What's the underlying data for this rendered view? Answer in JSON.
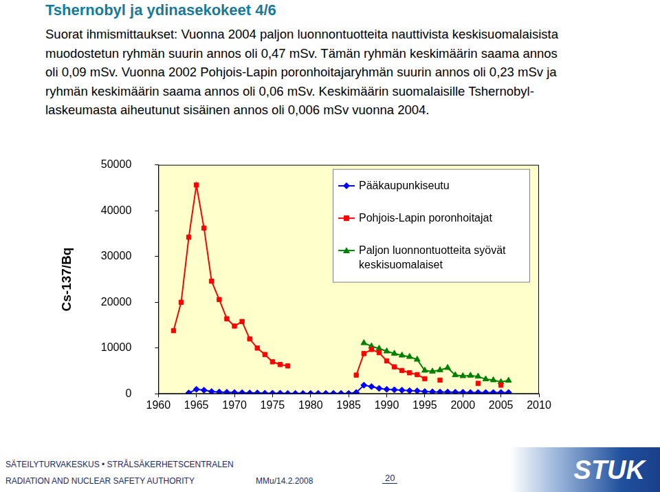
{
  "header": {
    "title": "Tshernobyl ja ydinasekokeet 4/6"
  },
  "text": [
    "Suorat ihmismittaukset: Vuonna 2004 paljon luonnontuotteita nauttivista keskisuomalaisista",
    "muodostetun ryhmän suurin annos oli 0,47 mSv. Tämän ryhmän keskimäärin saama annos",
    "oli 0,09 mSv. Vuonna 2002 Pohjois-Lapin poronhoitajaryhmän suurin annos oli 0,23 mSv ja",
    "ryhmän keskimäärin saama annos oli 0,06 mSv. Keskimäärin suomalaisille Tshernobyl-",
    "laskeumasta aiheutunut sisäinen annos oli 0,006 mSv vuonna 2004."
  ],
  "chart_data": {
    "type": "line",
    "ylabel": "Cs-137/Bq",
    "x": [
      1962,
      1963,
      1964,
      1965,
      1966,
      1967,
      1968,
      1969,
      1970,
      1971,
      1972,
      1973,
      1974,
      1975,
      1976,
      1977,
      1978,
      1979,
      1980,
      1981,
      1982,
      1983,
      1984,
      1985,
      1986,
      1987,
      1988,
      1989,
      1990,
      1991,
      1992,
      1993,
      1994,
      1995,
      1996,
      1997,
      1998,
      1999,
      2000,
      2001,
      2002,
      2003,
      2004,
      2005,
      2006,
      2007
    ],
    "series": [
      {
        "name": "Pääkaupunkiseutu",
        "color": "#0000ff",
        "marker": "diamond",
        "values": [
          null,
          null,
          200,
          1000,
          800,
          500,
          400,
          350,
          300,
          250,
          200,
          200,
          150,
          150,
          150,
          100,
          100,
          100,
          100,
          100,
          100,
          100,
          100,
          100,
          300,
          1900,
          1600,
          1200,
          1000,
          900,
          800,
          700,
          650,
          500,
          450,
          400,
          400,
          350,
          350,
          300,
          300,
          300,
          300,
          300,
          300,
          null
        ]
      },
      {
        "name": "Pohjois-Lapin poronhoitajat",
        "color": "#ff0000",
        "marker": "square",
        "values": [
          13800,
          20000,
          34200,
          45600,
          36200,
          24600,
          20600,
          16400,
          14800,
          15800,
          12000,
          10000,
          8600,
          7000,
          6400,
          6100,
          null,
          null,
          null,
          null,
          null,
          null,
          null,
          null,
          4100,
          8800,
          9700,
          9000,
          7200,
          5900,
          5100,
          4600,
          4200,
          3300,
          null,
          3000,
          null,
          null,
          null,
          null,
          2300,
          null,
          null,
          1900,
          null,
          null
        ]
      },
      {
        "name": "Paljon luonnontuotteita syövät keskisuomalaiset",
        "color": "#008000",
        "marker": "triangle",
        "values": [
          null,
          null,
          null,
          null,
          null,
          null,
          null,
          null,
          null,
          null,
          null,
          null,
          null,
          null,
          null,
          null,
          null,
          null,
          null,
          null,
          null,
          null,
          null,
          null,
          null,
          11100,
          10400,
          9900,
          9300,
          8800,
          8400,
          8100,
          7500,
          5100,
          4900,
          5200,
          5700,
          4100,
          3900,
          4000,
          3800,
          3200,
          3000,
          2600,
          2900,
          null
        ]
      }
    ],
    "xlim": [
      1960,
      2010
    ],
    "xticks": [
      1960,
      1965,
      1970,
      1975,
      1980,
      1985,
      1990,
      1995,
      2000,
      2005,
      2010
    ],
    "ylim": [
      0,
      50000
    ],
    "yticks": [
      0,
      10000,
      20000,
      30000,
      40000,
      50000
    ],
    "grid": false,
    "legend": "upper right"
  },
  "footer": {
    "org": "SÄTEILYTURVAKESKUS • STRÅLSÄKERHETSCENTRALEN",
    "org_en": "RADIATION AND NUCLEAR SAFETY AUTHORITY",
    "author_date": "MMu/14.2.2008",
    "page": 20,
    "logo": "STUK"
  }
}
